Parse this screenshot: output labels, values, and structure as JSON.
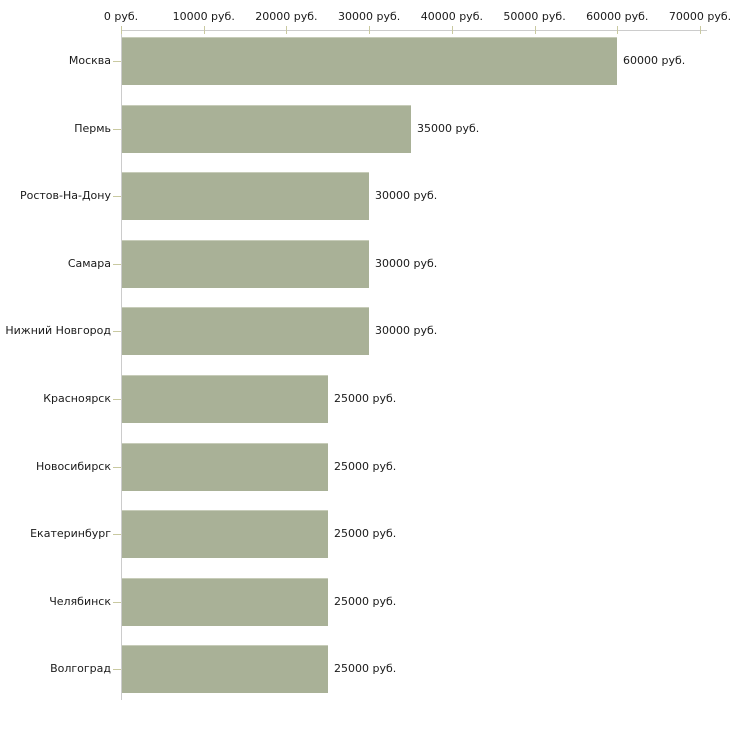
{
  "chart_data": {
    "type": "bar",
    "orientation": "horizontal",
    "title": "",
    "xlabel": "",
    "ylabel": "",
    "unit": "руб.",
    "categories": [
      "Москва",
      "Пермь",
      "Ростов-На-Дону",
      "Самара",
      "Нижний Новгород",
      "Красноярск",
      "Новосибирск",
      "Екатеринбург",
      "Челябинск",
      "Волгоград"
    ],
    "values": [
      60000,
      35000,
      30000,
      30000,
      30000,
      25000,
      25000,
      25000,
      25000,
      25000
    ],
    "value_labels": [
      "60000 руб.",
      "35000 руб.",
      "30000 руб.",
      "30000 руб.",
      "30000 руб.",
      "25000 руб.",
      "25000 руб.",
      "25000 руб.",
      "25000 руб.",
      "25000 руб."
    ],
    "x_ticks": [
      0,
      10000,
      20000,
      30000,
      40000,
      50000,
      60000,
      70000
    ],
    "x_tick_labels": [
      "0 руб.",
      "10000 руб.",
      "20000 руб.",
      "30000 руб.",
      "40000 руб.",
      "50000 руб.",
      "60000 руб.",
      "70000 руб."
    ],
    "xlim": [
      0,
      70000
    ],
    "grid": false,
    "legend": null,
    "colors": {
      "bar": "#a9b197",
      "bar_highlight": "#c7ccb9",
      "axis_line": "#cccccc",
      "tick_mark": "#c9c9a0",
      "text": "#1a1a1a",
      "background": "#ffffff"
    }
  }
}
